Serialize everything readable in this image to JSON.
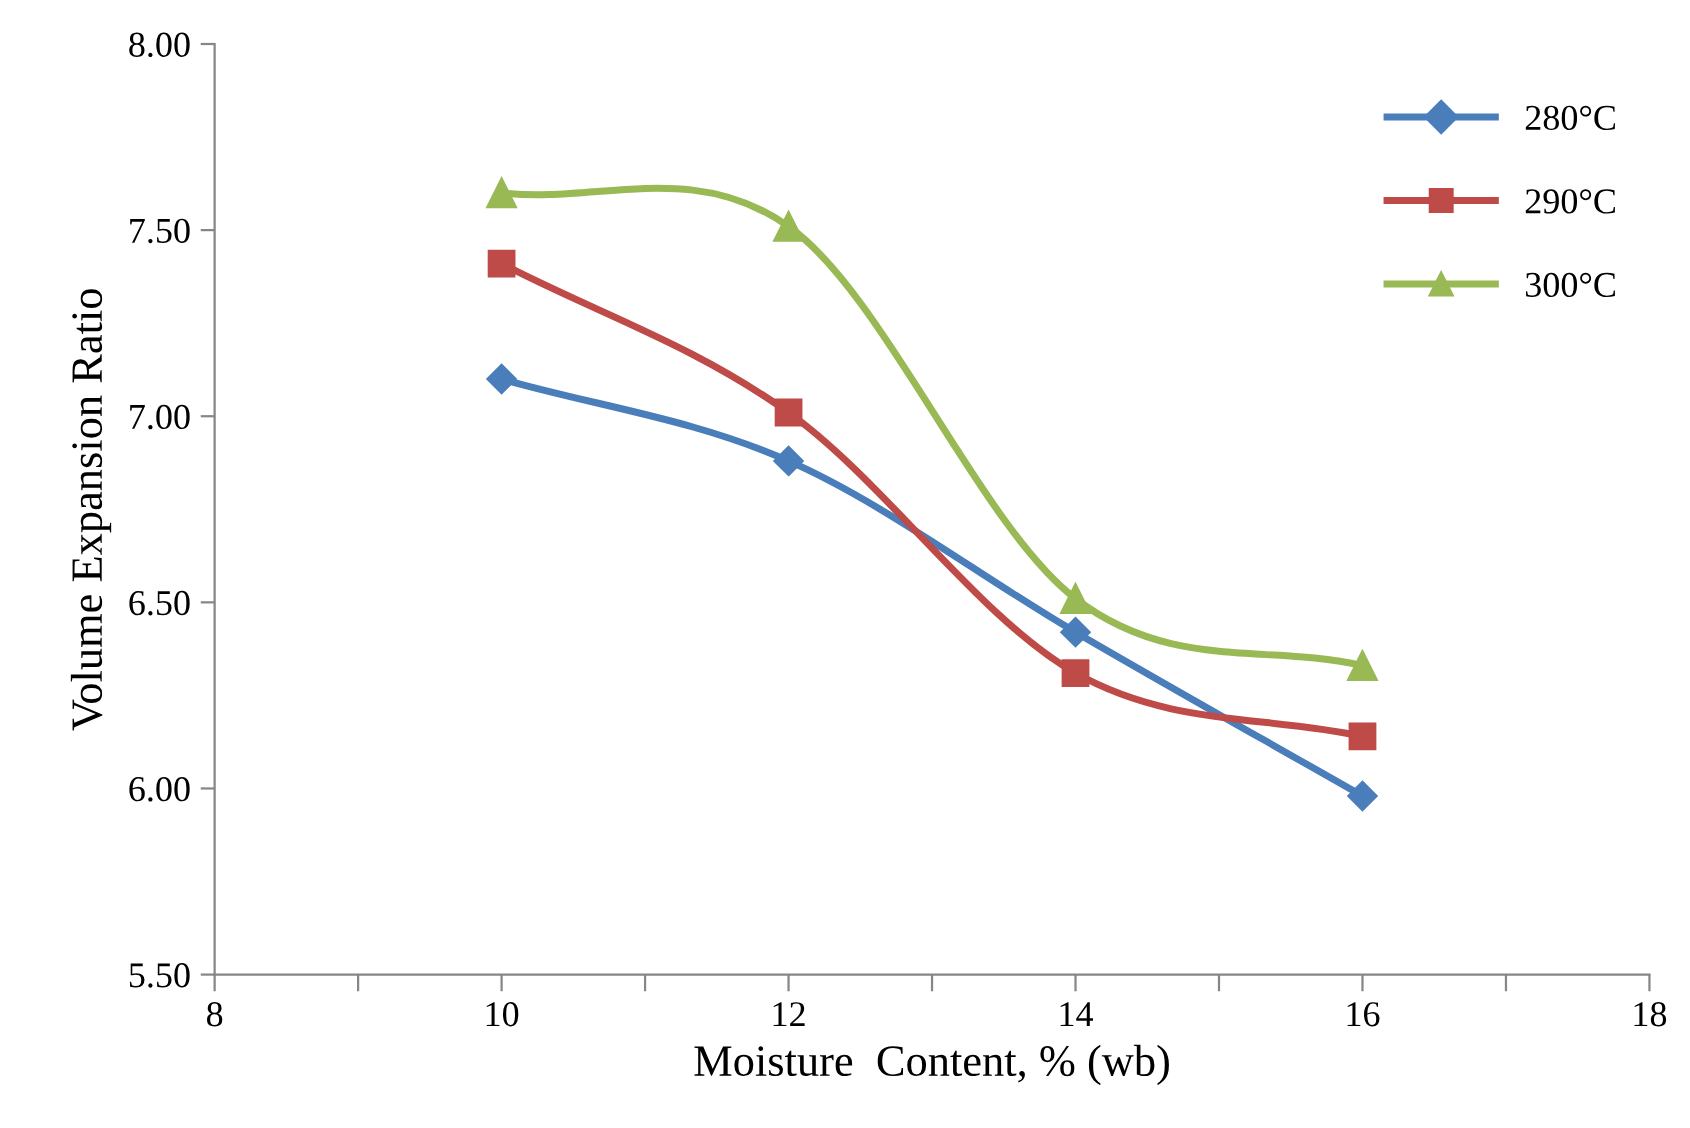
{
  "chart_data": {
    "type": "line",
    "xlabel": "Moisture  Content, % (wb)",
    "ylabel": "Volume Expansion Ratio",
    "x": [
      10,
      12,
      14,
      16
    ],
    "series": [
      {
        "name": "280°C",
        "color": "#4a7ebb",
        "marker": "diamond",
        "values": [
          7.1,
          6.88,
          6.42,
          5.98
        ]
      },
      {
        "name": "290°C",
        "color": "#be4b48",
        "marker": "square",
        "values": [
          7.41,
          7.01,
          6.31,
          6.14
        ]
      },
      {
        "name": "300°C",
        "color": "#98b954",
        "marker": "triangle",
        "values": [
          7.6,
          7.51,
          6.51,
          6.33
        ]
      }
    ],
    "xlim": [
      8,
      18
    ],
    "ylim": [
      5.5,
      8.0
    ],
    "xticks": [
      8,
      {
        "value": 9,
        "label": null
      },
      10,
      {
        "value": 11,
        "label": null
      },
      12,
      {
        "value": 13,
        "label": null
      },
      14,
      {
        "value": 15,
        "label": null
      },
      16,
      {
        "value": 17,
        "label": null
      },
      18
    ],
    "yticks": [
      {
        "value": 5.5,
        "label": "5.50"
      },
      {
        "value": 6.0,
        "label": "6.00"
      },
      {
        "value": 6.5,
        "label": "6.50"
      },
      {
        "value": 7.0,
        "label": "7.00"
      },
      {
        "value": 7.5,
        "label": "7.50"
      },
      {
        "value": 8.0,
        "label": "8.00"
      }
    ],
    "grid": false,
    "legend": "top right",
    "line_style": "solid"
  }
}
